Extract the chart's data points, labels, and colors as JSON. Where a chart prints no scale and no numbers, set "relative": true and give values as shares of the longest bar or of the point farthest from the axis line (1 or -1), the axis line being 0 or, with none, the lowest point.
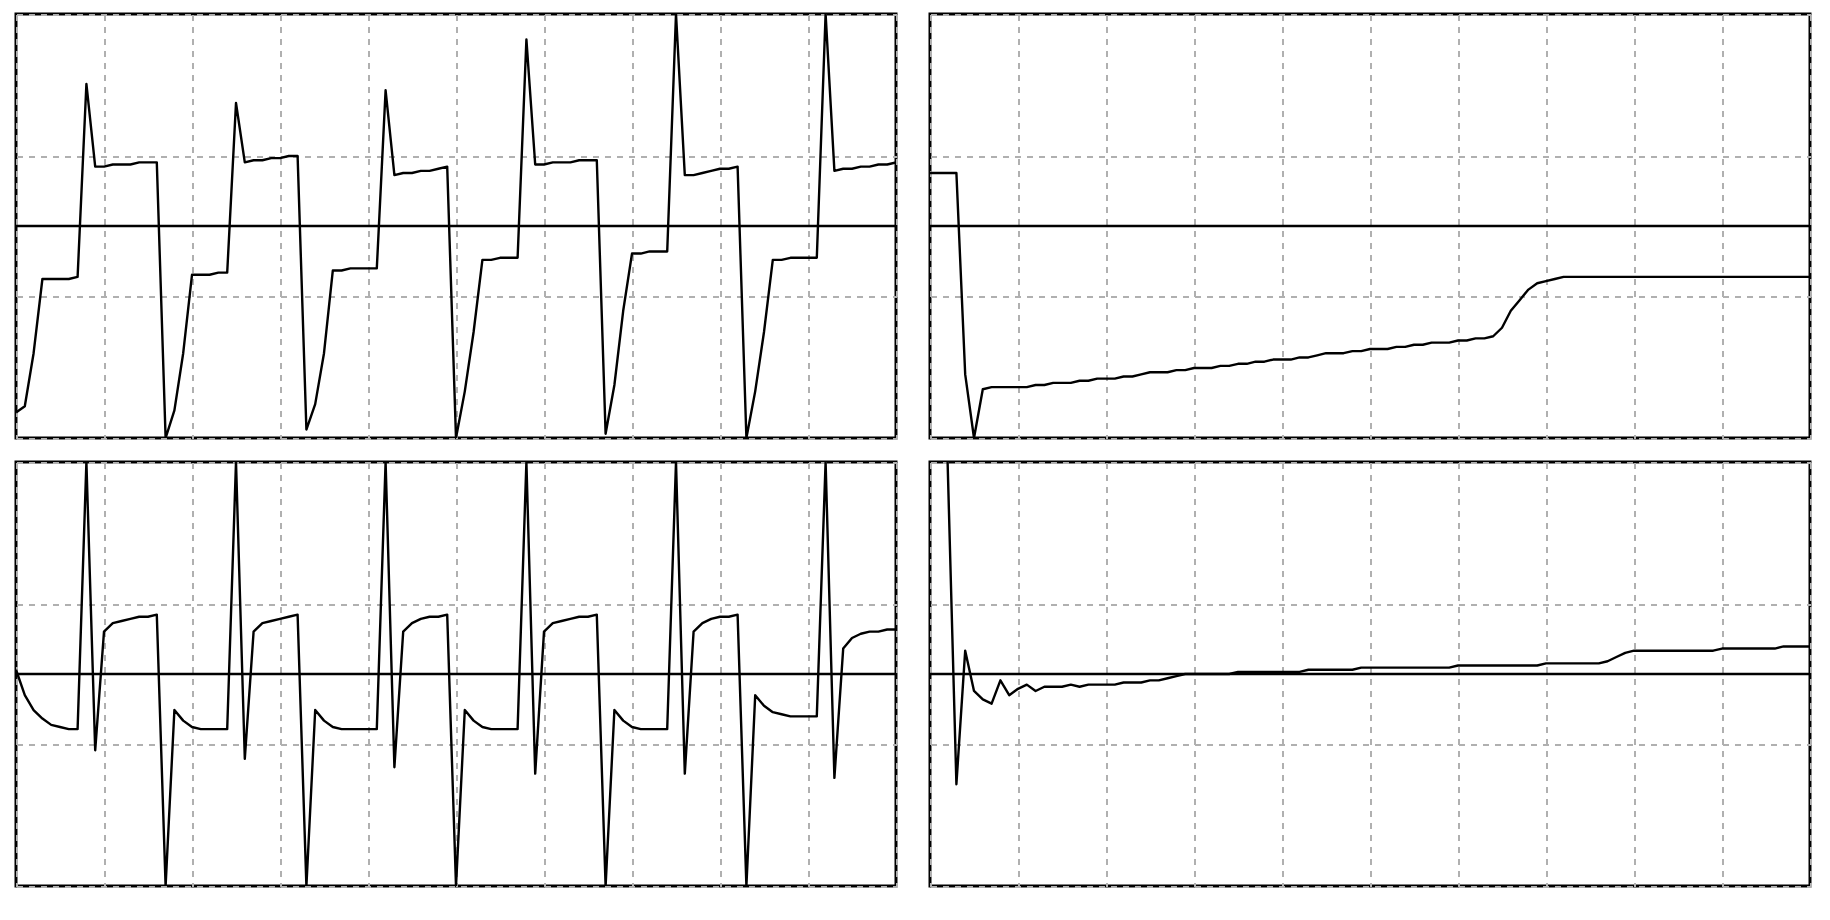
{
  "chart_data": [
    {
      "type": "line",
      "relative": true,
      "grid": true,
      "color": "#000000",
      "categories": [
        null,
        null,
        null,
        null,
        null,
        null,
        null,
        null,
        null,
        null,
        null,
        null,
        null,
        null,
        null,
        null,
        null,
        null,
        null,
        null,
        null,
        null,
        null,
        null,
        null,
        null,
        null,
        null,
        null,
        null,
        null,
        null,
        null,
        null,
        null,
        null,
        null,
        null,
        null,
        null,
        null,
        null,
        null,
        null,
        null,
        null,
        null,
        null,
        null,
        null,
        null,
        null,
        null,
        null,
        null,
        null,
        null,
        null,
        null,
        null,
        null,
        null,
        null,
        null,
        null,
        null,
        null,
        null,
        null,
        null,
        null,
        null,
        null,
        null,
        null,
        null,
        null,
        null,
        null,
        null,
        null,
        null,
        null,
        null,
        null,
        null,
        null,
        null,
        null,
        null,
        null,
        null,
        null,
        null,
        null,
        null,
        null,
        null,
        null,
        null,
        null
      ],
      "values": [
        -0.88,
        -0.85,
        -0.6,
        -0.25,
        -0.25,
        -0.25,
        -0.25,
        -0.24,
        0.67,
        0.28,
        0.28,
        0.29,
        0.29,
        0.29,
        0.3,
        0.3,
        0.3,
        -1,
        -0.87,
        -0.6,
        -0.23,
        -0.23,
        -0.23,
        -0.22,
        -0.22,
        0.58,
        0.3,
        0.31,
        0.31,
        0.32,
        0.32,
        0.33,
        0.33,
        -0.96,
        -0.84,
        -0.6,
        -0.21,
        -0.21,
        -0.2,
        -0.2,
        -0.2,
        -0.2,
        0.64,
        0.24,
        0.25,
        0.25,
        0.26,
        0.26,
        0.27,
        0.28,
        -1,
        -0.78,
        -0.5,
        -0.16,
        -0.16,
        -0.15,
        -0.15,
        -0.15,
        0.88,
        0.29,
        0.29,
        0.3,
        0.3,
        0.3,
        0.31,
        0.31,
        0.31,
        -0.98,
        -0.75,
        -0.4,
        -0.13,
        -0.13,
        -0.12,
        -0.12,
        -0.12,
        1,
        0.24,
        0.24,
        0.25,
        0.26,
        0.27,
        0.27,
        0.28,
        -1,
        -0.78,
        -0.5,
        -0.16,
        -0.16,
        -0.15,
        -0.15,
        -0.15,
        -0.15,
        1,
        0.26,
        0.27,
        0.27,
        0.28,
        0.28,
        0.29,
        0.29,
        0.3
      ]
    },
    {
      "type": "line",
      "relative": true,
      "grid": true,
      "color": "#000000",
      "categories": [
        null,
        null,
        null,
        null,
        null,
        null,
        null,
        null,
        null,
        null,
        null,
        null,
        null,
        null,
        null,
        null,
        null,
        null,
        null,
        null,
        null,
        null,
        null,
        null,
        null,
        null,
        null,
        null,
        null,
        null,
        null,
        null,
        null,
        null,
        null,
        null,
        null,
        null,
        null,
        null,
        null,
        null,
        null,
        null,
        null,
        null,
        null,
        null,
        null,
        null,
        null,
        null,
        null,
        null,
        null,
        null,
        null,
        null,
        null,
        null,
        null,
        null,
        null,
        null,
        null,
        null,
        null,
        null,
        null,
        null,
        null,
        null,
        null,
        null,
        null,
        null,
        null,
        null,
        null,
        null,
        null,
        null,
        null,
        null,
        null,
        null,
        null,
        null,
        null,
        null,
        null,
        null,
        null,
        null,
        null,
        null,
        null,
        null,
        null,
        null,
        null
      ],
      "values": [
        0.25,
        0.25,
        0.25,
        0.25,
        -0.7,
        -1,
        -0.77,
        -0.76,
        -0.76,
        -0.76,
        -0.76,
        -0.76,
        -0.75,
        -0.75,
        -0.74,
        -0.74,
        -0.74,
        -0.73,
        -0.73,
        -0.72,
        -0.72,
        -0.72,
        -0.71,
        -0.71,
        -0.7,
        -0.69,
        -0.69,
        -0.69,
        -0.68,
        -0.68,
        -0.67,
        -0.67,
        -0.67,
        -0.66,
        -0.66,
        -0.65,
        -0.65,
        -0.64,
        -0.64,
        -0.63,
        -0.63,
        -0.63,
        -0.62,
        -0.62,
        -0.61,
        -0.6,
        -0.6,
        -0.6,
        -0.59,
        -0.59,
        -0.58,
        -0.58,
        -0.58,
        -0.57,
        -0.57,
        -0.56,
        -0.56,
        -0.55,
        -0.55,
        -0.55,
        -0.54,
        -0.54,
        -0.53,
        -0.53,
        -0.52,
        -0.48,
        -0.4,
        -0.35,
        -0.3,
        -0.27,
        -0.26,
        -0.25,
        -0.24,
        -0.24,
        -0.24,
        -0.24,
        -0.24,
        -0.24,
        -0.24,
        -0.24,
        -0.24,
        -0.24,
        -0.24,
        -0.24,
        -0.24,
        -0.24,
        -0.24,
        -0.24,
        -0.24,
        -0.24,
        -0.24,
        -0.24,
        -0.24,
        -0.24,
        -0.24,
        -0.24,
        -0.24,
        -0.24,
        -0.24,
        -0.24,
        -0.24
      ]
    },
    {
      "type": "line",
      "relative": true,
      "grid": true,
      "color": "#000000",
      "categories": [
        null,
        null,
        null,
        null,
        null,
        null,
        null,
        null,
        null,
        null,
        null,
        null,
        null,
        null,
        null,
        null,
        null,
        null,
        null,
        null,
        null,
        null,
        null,
        null,
        null,
        null,
        null,
        null,
        null,
        null,
        null,
        null,
        null,
        null,
        null,
        null,
        null,
        null,
        null,
        null,
        null,
        null,
        null,
        null,
        null,
        null,
        null,
        null,
        null,
        null,
        null,
        null,
        null,
        null,
        null,
        null,
        null,
        null,
        null,
        null,
        null,
        null,
        null,
        null,
        null,
        null,
        null,
        null,
        null,
        null,
        null,
        null,
        null,
        null,
        null,
        null,
        null,
        null,
        null,
        null,
        null,
        null,
        null,
        null,
        null,
        null,
        null,
        null,
        null,
        null,
        null,
        null,
        null,
        null,
        null,
        null,
        null,
        null,
        null,
        null,
        null
      ],
      "values": [
        0.02,
        -0.1,
        -0.17,
        -0.21,
        -0.24,
        -0.25,
        -0.26,
        -0.26,
        1,
        -0.36,
        0.2,
        0.24,
        0.25,
        0.26,
        0.27,
        0.27,
        0.28,
        -1,
        -0.17,
        -0.22,
        -0.25,
        -0.26,
        -0.26,
        -0.26,
        -0.26,
        1,
        -0.4,
        0.2,
        0.24,
        0.25,
        0.26,
        0.27,
        0.28,
        -1,
        -0.17,
        -0.22,
        -0.25,
        -0.26,
        -0.26,
        -0.26,
        -0.26,
        -0.26,
        1,
        -0.44,
        0.2,
        0.24,
        0.26,
        0.27,
        0.27,
        0.28,
        -1,
        -0.17,
        -0.22,
        -0.25,
        -0.26,
        -0.26,
        -0.26,
        -0.26,
        1,
        -0.47,
        0.2,
        0.24,
        0.25,
        0.26,
        0.27,
        0.27,
        0.28,
        -1,
        -0.17,
        -0.22,
        -0.25,
        -0.26,
        -0.26,
        -0.26,
        -0.26,
        1,
        -0.47,
        0.2,
        0.24,
        0.26,
        0.27,
        0.27,
        0.28,
        -1,
        -0.1,
        -0.15,
        -0.18,
        -0.19,
        -0.2,
        -0.2,
        -0.2,
        -0.2,
        1,
        -0.49,
        0.12,
        0.17,
        0.19,
        0.2,
        0.2,
        0.21,
        0.21
      ]
    },
    {
      "type": "line",
      "relative": true,
      "grid": true,
      "color": "#000000",
      "categories": [
        null,
        null,
        null,
        null,
        null,
        null,
        null,
        null,
        null,
        null,
        null,
        null,
        null,
        null,
        null,
        null,
        null,
        null,
        null,
        null,
        null,
        null,
        null,
        null,
        null,
        null,
        null,
        null,
        null,
        null,
        null,
        null,
        null,
        null,
        null,
        null,
        null,
        null,
        null,
        null,
        null,
        null,
        null,
        null,
        null,
        null,
        null,
        null,
        null,
        null,
        null,
        null,
        null,
        null,
        null,
        null,
        null,
        null,
        null,
        null,
        null,
        null,
        null,
        null,
        null,
        null,
        null,
        null,
        null,
        null,
        null,
        null,
        null,
        null,
        null,
        null,
        null,
        null,
        null,
        null,
        null,
        null,
        null,
        null,
        null,
        null,
        null,
        null,
        null,
        null,
        null,
        null,
        null,
        null,
        null,
        null,
        null,
        null,
        null,
        null,
        null
      ],
      "values": [
        null,
        null,
        1,
        -0.52,
        0.11,
        -0.08,
        -0.12,
        -0.14,
        -0.03,
        -0.1,
        -0.07,
        -0.05,
        -0.08,
        -0.06,
        -0.06,
        -0.06,
        -0.05,
        -0.06,
        -0.05,
        -0.05,
        -0.05,
        -0.05,
        -0.04,
        -0.04,
        -0.04,
        -0.03,
        -0.03,
        -0.02,
        -0.01,
        0,
        0,
        0,
        0,
        0,
        0,
        0.01,
        0.01,
        0.01,
        0.01,
        0.01,
        0.01,
        0.01,
        0.01,
        0.02,
        0.02,
        0.02,
        0.02,
        0.02,
        0.02,
        0.03,
        0.03,
        0.03,
        0.03,
        0.03,
        0.03,
        0.03,
        0.03,
        0.03,
        0.03,
        0.03,
        0.04,
        0.04,
        0.04,
        0.04,
        0.04,
        0.04,
        0.04,
        0.04,
        0.04,
        0.04,
        0.05,
        0.05,
        0.05,
        0.05,
        0.05,
        0.05,
        0.05,
        0.06,
        0.08,
        0.1,
        0.11,
        0.11,
        0.11,
        0.11,
        0.11,
        0.11,
        0.11,
        0.11,
        0.11,
        0.11,
        0.12,
        0.12,
        0.12,
        0.12,
        0.12,
        0.12,
        0.12,
        0.13,
        0.13,
        0.13,
        0.13
      ]
    }
  ]
}
